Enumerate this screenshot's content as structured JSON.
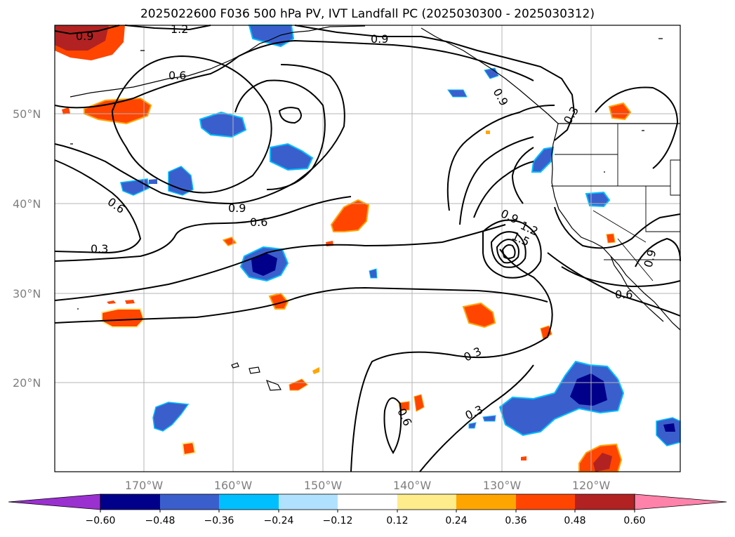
{
  "title": "2025022600 F036 500 hPa PV, IVT Landfall PC (2025030300 - 2025030312)",
  "lat_labels": [
    "50°N",
    "40°N",
    "30°N",
    "20°N"
  ],
  "lon_labels": [
    "170°W",
    "160°W",
    "150°W",
    "140°W",
    "130°W",
    "120°W"
  ],
  "contour_labels": {
    "c1": "0.9",
    "c2": "1.2",
    "c3": "0.9",
    "c4": "0.6",
    "c5": "0.6",
    "c6": "0.9",
    "c7": "0.6",
    "c8": "0.3",
    "c9": "0.9",
    "c10": "1.5",
    "c11": "1.2",
    "c12": "0.9",
    "c13": "0.3",
    "c14": "0.9",
    "c15": "0.6",
    "c16": "0.3",
    "c17": "0.3",
    "c18": "0.6"
  },
  "colorbar": {
    "ticks": [
      "−0.60",
      "−0.48",
      "−0.36",
      "−0.24",
      "−0.12",
      "0.12",
      "0.24",
      "0.36",
      "0.48",
      "0.60"
    ],
    "colors": [
      "#9b30d0",
      "#00008b",
      "#3a5fcd",
      "#00bfff",
      "#b0e2ff",
      "#ffffff",
      "#ffec8b",
      "#ffa500",
      "#ff4500",
      "#b22222",
      "#ff82ab"
    ]
  }
}
